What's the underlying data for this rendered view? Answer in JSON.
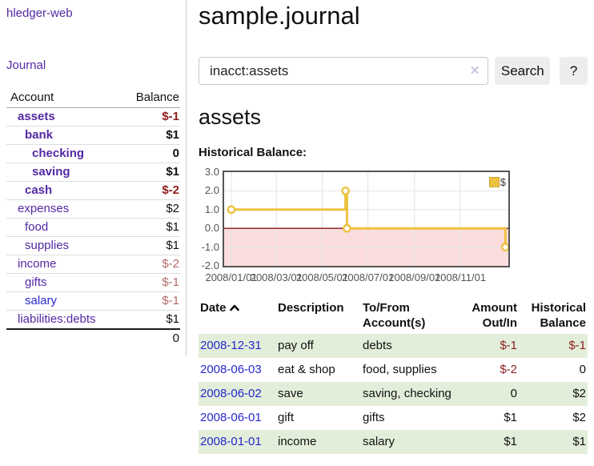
{
  "app": {
    "title": "hledger-web",
    "nav_journal": "Journal"
  },
  "colors": {
    "link_purple": "#5229a3",
    "link_blue": "#2727cf",
    "negative_strong": "#8f1d1d",
    "negative_soft": "#b46a6a",
    "row_stripe_green": "#e2eeda",
    "series_gold": "#edc240",
    "negative_region_pink": "#fbdddd",
    "zero_line_red": "#871718",
    "grid_gray": "#e3e3e3",
    "plot_border": "#545454"
  },
  "icons": {
    "clear": "clear-icon (✕)",
    "sort": "sort-ascending-icon (chevron-up)",
    "legend": "series-swatch"
  },
  "sidebar": {
    "accounts_header": {
      "account": "Account",
      "balance": "Balance"
    },
    "accounts": [
      {
        "name": "assets",
        "balance": "$-1",
        "indent": 1,
        "bold": true,
        "blue": false,
        "neg": "strong"
      },
      {
        "name": "bank",
        "balance": "$1",
        "indent": 2,
        "bold": true,
        "blue": false,
        "neg": "none"
      },
      {
        "name": "checking",
        "balance": "0",
        "indent": 3,
        "bold": true,
        "blue": false,
        "neg": "none"
      },
      {
        "name": "saving",
        "balance": "$1",
        "indent": 3,
        "bold": true,
        "blue": false,
        "neg": "none"
      },
      {
        "name": "cash",
        "balance": "$-2",
        "indent": 2,
        "bold": true,
        "blue": false,
        "neg": "strong"
      },
      {
        "name": "expenses",
        "balance": "$2",
        "indent": 1,
        "bold": false,
        "blue": false,
        "neg": "none"
      },
      {
        "name": "food",
        "balance": "$1",
        "indent": 2,
        "bold": false,
        "blue": false,
        "neg": "none"
      },
      {
        "name": "supplies",
        "balance": "$1",
        "indent": 2,
        "bold": false,
        "blue": false,
        "neg": "none"
      },
      {
        "name": "income",
        "balance": "$-2",
        "indent": 1,
        "bold": false,
        "blue": false,
        "neg": "soft"
      },
      {
        "name": "gifts",
        "balance": "$-1",
        "indent": 2,
        "bold": false,
        "blue": false,
        "neg": "soft"
      },
      {
        "name": "salary",
        "balance": "$-1",
        "indent": 2,
        "bold": false,
        "blue": true,
        "neg": "soft"
      },
      {
        "name": "liabilities:debts",
        "balance": "$1",
        "indent": 1,
        "bold": false,
        "blue": false,
        "neg": "none"
      }
    ],
    "total": "0"
  },
  "main": {
    "title": "sample.journal",
    "search": {
      "value": "inacct:assets",
      "clear_glyph": "✕",
      "button_label": "Search",
      "help_label": "?"
    },
    "account_heading": "assets",
    "chart_heading": "Historical Balance:"
  },
  "chart_data": {
    "type": "line",
    "title": "Historical Balance",
    "style": "steps",
    "series": [
      {
        "name": "$",
        "points": [
          [
            "2008-01-01",
            1
          ],
          [
            "2008-06-01",
            2
          ],
          [
            "2008-06-03",
            0
          ],
          [
            "2008-12-31",
            -1
          ]
        ]
      }
    ],
    "x_ticks": [
      "2008/01/01",
      "2008/03/01",
      "2008/05/01",
      "2008/07/01",
      "2008/09/01",
      "2008/11/01"
    ],
    "y_ticks": [
      "3.0",
      "2.0",
      "1.0",
      "0.0",
      "-1.0",
      "-2.0"
    ],
    "ylim": [
      -2,
      3
    ],
    "x_domain": [
      "2008-01-01",
      "2008-12-31"
    ],
    "grid": true,
    "legend": {
      "label": "$",
      "position": "top-right"
    },
    "annotations": {
      "negative_region_shaded": true,
      "zero_line": true
    }
  },
  "register": {
    "headers": {
      "date": "Date",
      "description": "Description",
      "accounts_l1": "To/From",
      "accounts_l2": "Account(s)",
      "amount_l1": "Amount",
      "amount_l2": "Out/In",
      "balance_l1": "Historical",
      "balance_l2": "Balance"
    },
    "rows": [
      {
        "date": "2008-12-31",
        "description": "pay off",
        "accounts": "debts",
        "amount": "$-1",
        "balance": "$-1",
        "amount_neg": true,
        "balance_neg": true
      },
      {
        "date": "2008-06-03",
        "description": "eat & shop",
        "accounts": "food, supplies",
        "amount": "$-2",
        "balance": "0",
        "amount_neg": true,
        "balance_neg": false
      },
      {
        "date": "2008-06-02",
        "description": "save",
        "accounts": "saving, checking",
        "amount": "0",
        "balance": "$2",
        "amount_neg": false,
        "balance_neg": false
      },
      {
        "date": "2008-06-01",
        "description": "gift",
        "accounts": "gifts",
        "amount": "$1",
        "balance": "$2",
        "amount_neg": false,
        "balance_neg": false
      },
      {
        "date": "2008-01-01",
        "description": "income",
        "accounts": "salary",
        "amount": "$1",
        "balance": "$1",
        "amount_neg": false,
        "balance_neg": false
      }
    ]
  }
}
